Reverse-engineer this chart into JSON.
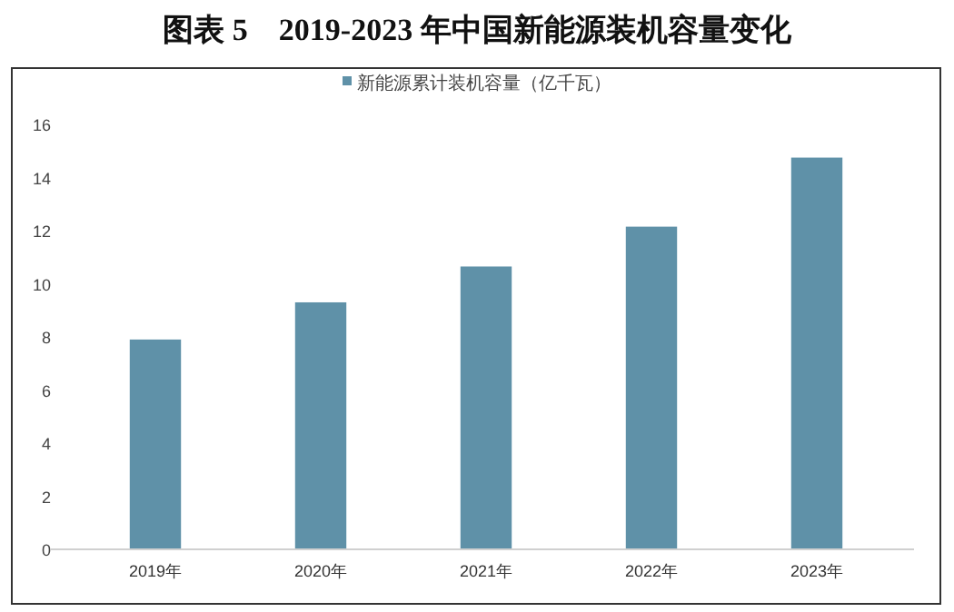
{
  "chart_data": {
    "type": "bar",
    "title": "图表 5　2019-2023 年中国新能源装机容量变化",
    "categories": [
      "2019年",
      "2020年",
      "2021年",
      "2022年",
      "2023年"
    ],
    "series": [
      {
        "name": "新能源累计装机容量（亿千瓦）",
        "color": "#5f91a8",
        "values": [
          7.9,
          9.3,
          10.65,
          12.15,
          14.75
        ]
      }
    ],
    "ylim": [
      0,
      16
    ],
    "yticks": [
      0,
      2,
      4,
      6,
      8,
      10,
      12,
      14,
      16
    ],
    "grid": false,
    "legend": "top"
  }
}
